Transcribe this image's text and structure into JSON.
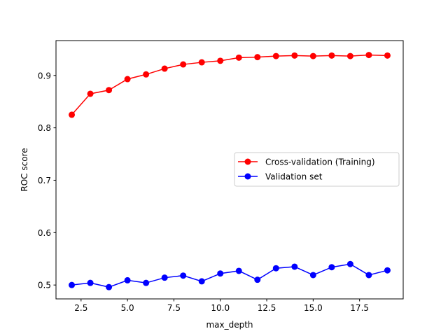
{
  "chart_data": {
    "type": "line",
    "title": "",
    "xlabel": "max_depth",
    "ylabel": "ROC score",
    "xlim": [
      1.15,
      19.85
    ],
    "ylim": [
      0.4735,
      0.9665
    ],
    "xticks": [
      2.5,
      5.0,
      7.5,
      10.0,
      12.5,
      15.0,
      17.5
    ],
    "xtick_labels": [
      "2.5",
      "5.0",
      "7.5",
      "10.0",
      "12.5",
      "15.0",
      "17.5"
    ],
    "yticks": [
      0.5,
      0.6,
      0.7,
      0.8,
      0.9
    ],
    "ytick_labels": [
      "0.5",
      "0.6",
      "0.7",
      "0.8",
      "0.9"
    ],
    "grid": false,
    "legend_position": "center-right",
    "x": [
      2,
      3,
      4,
      5,
      6,
      7,
      8,
      9,
      10,
      11,
      12,
      13,
      14,
      15,
      16,
      17,
      18,
      19
    ],
    "series": [
      {
        "name": "Cross-validation (Training)",
        "color": "#ff0000",
        "values": [
          0.825,
          0.865,
          0.872,
          0.893,
          0.902,
          0.913,
          0.921,
          0.925,
          0.928,
          0.934,
          0.935,
          0.937,
          0.938,
          0.937,
          0.938,
          0.937,
          0.939,
          0.938
        ]
      },
      {
        "name": "Validation set",
        "color": "#0000ff",
        "values": [
          0.5,
          0.504,
          0.496,
          0.509,
          0.504,
          0.514,
          0.518,
          0.507,
          0.522,
          0.527,
          0.51,
          0.532,
          0.535,
          0.519,
          0.534,
          0.54,
          0.519,
          0.528
        ]
      }
    ]
  }
}
